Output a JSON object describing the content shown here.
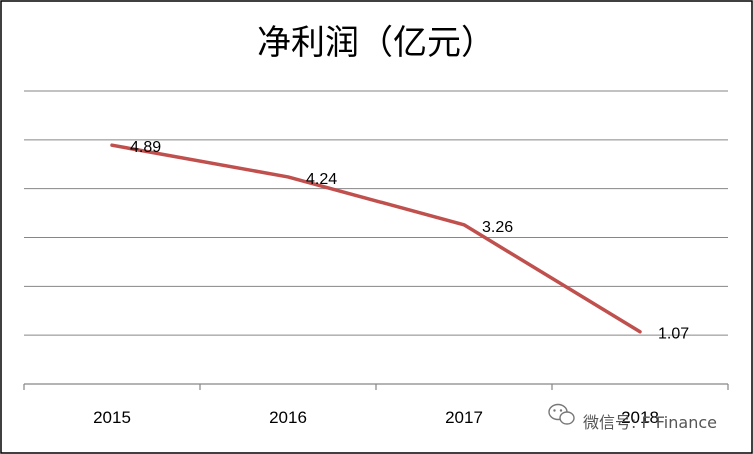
{
  "chart_data": {
    "type": "line",
    "title": "净利润（亿元）",
    "categories": [
      "2015",
      "2016",
      "2017",
      "2018"
    ],
    "series": [
      {
        "values": [
          4.89,
          4.24,
          3.26,
          1.07
        ]
      }
    ],
    "data_labels": [
      "4.89",
      "4.24",
      "3.26",
      "1.07"
    ],
    "ylim": [
      0,
      6
    ],
    "grid": true,
    "legend": "none",
    "colors": {
      "line": "#C0504D",
      "grid": "#868686",
      "axis": "#868686",
      "border": "#000000"
    }
  },
  "watermark": {
    "text": "微信号: F Finance",
    "icon": "wechat-icon"
  }
}
